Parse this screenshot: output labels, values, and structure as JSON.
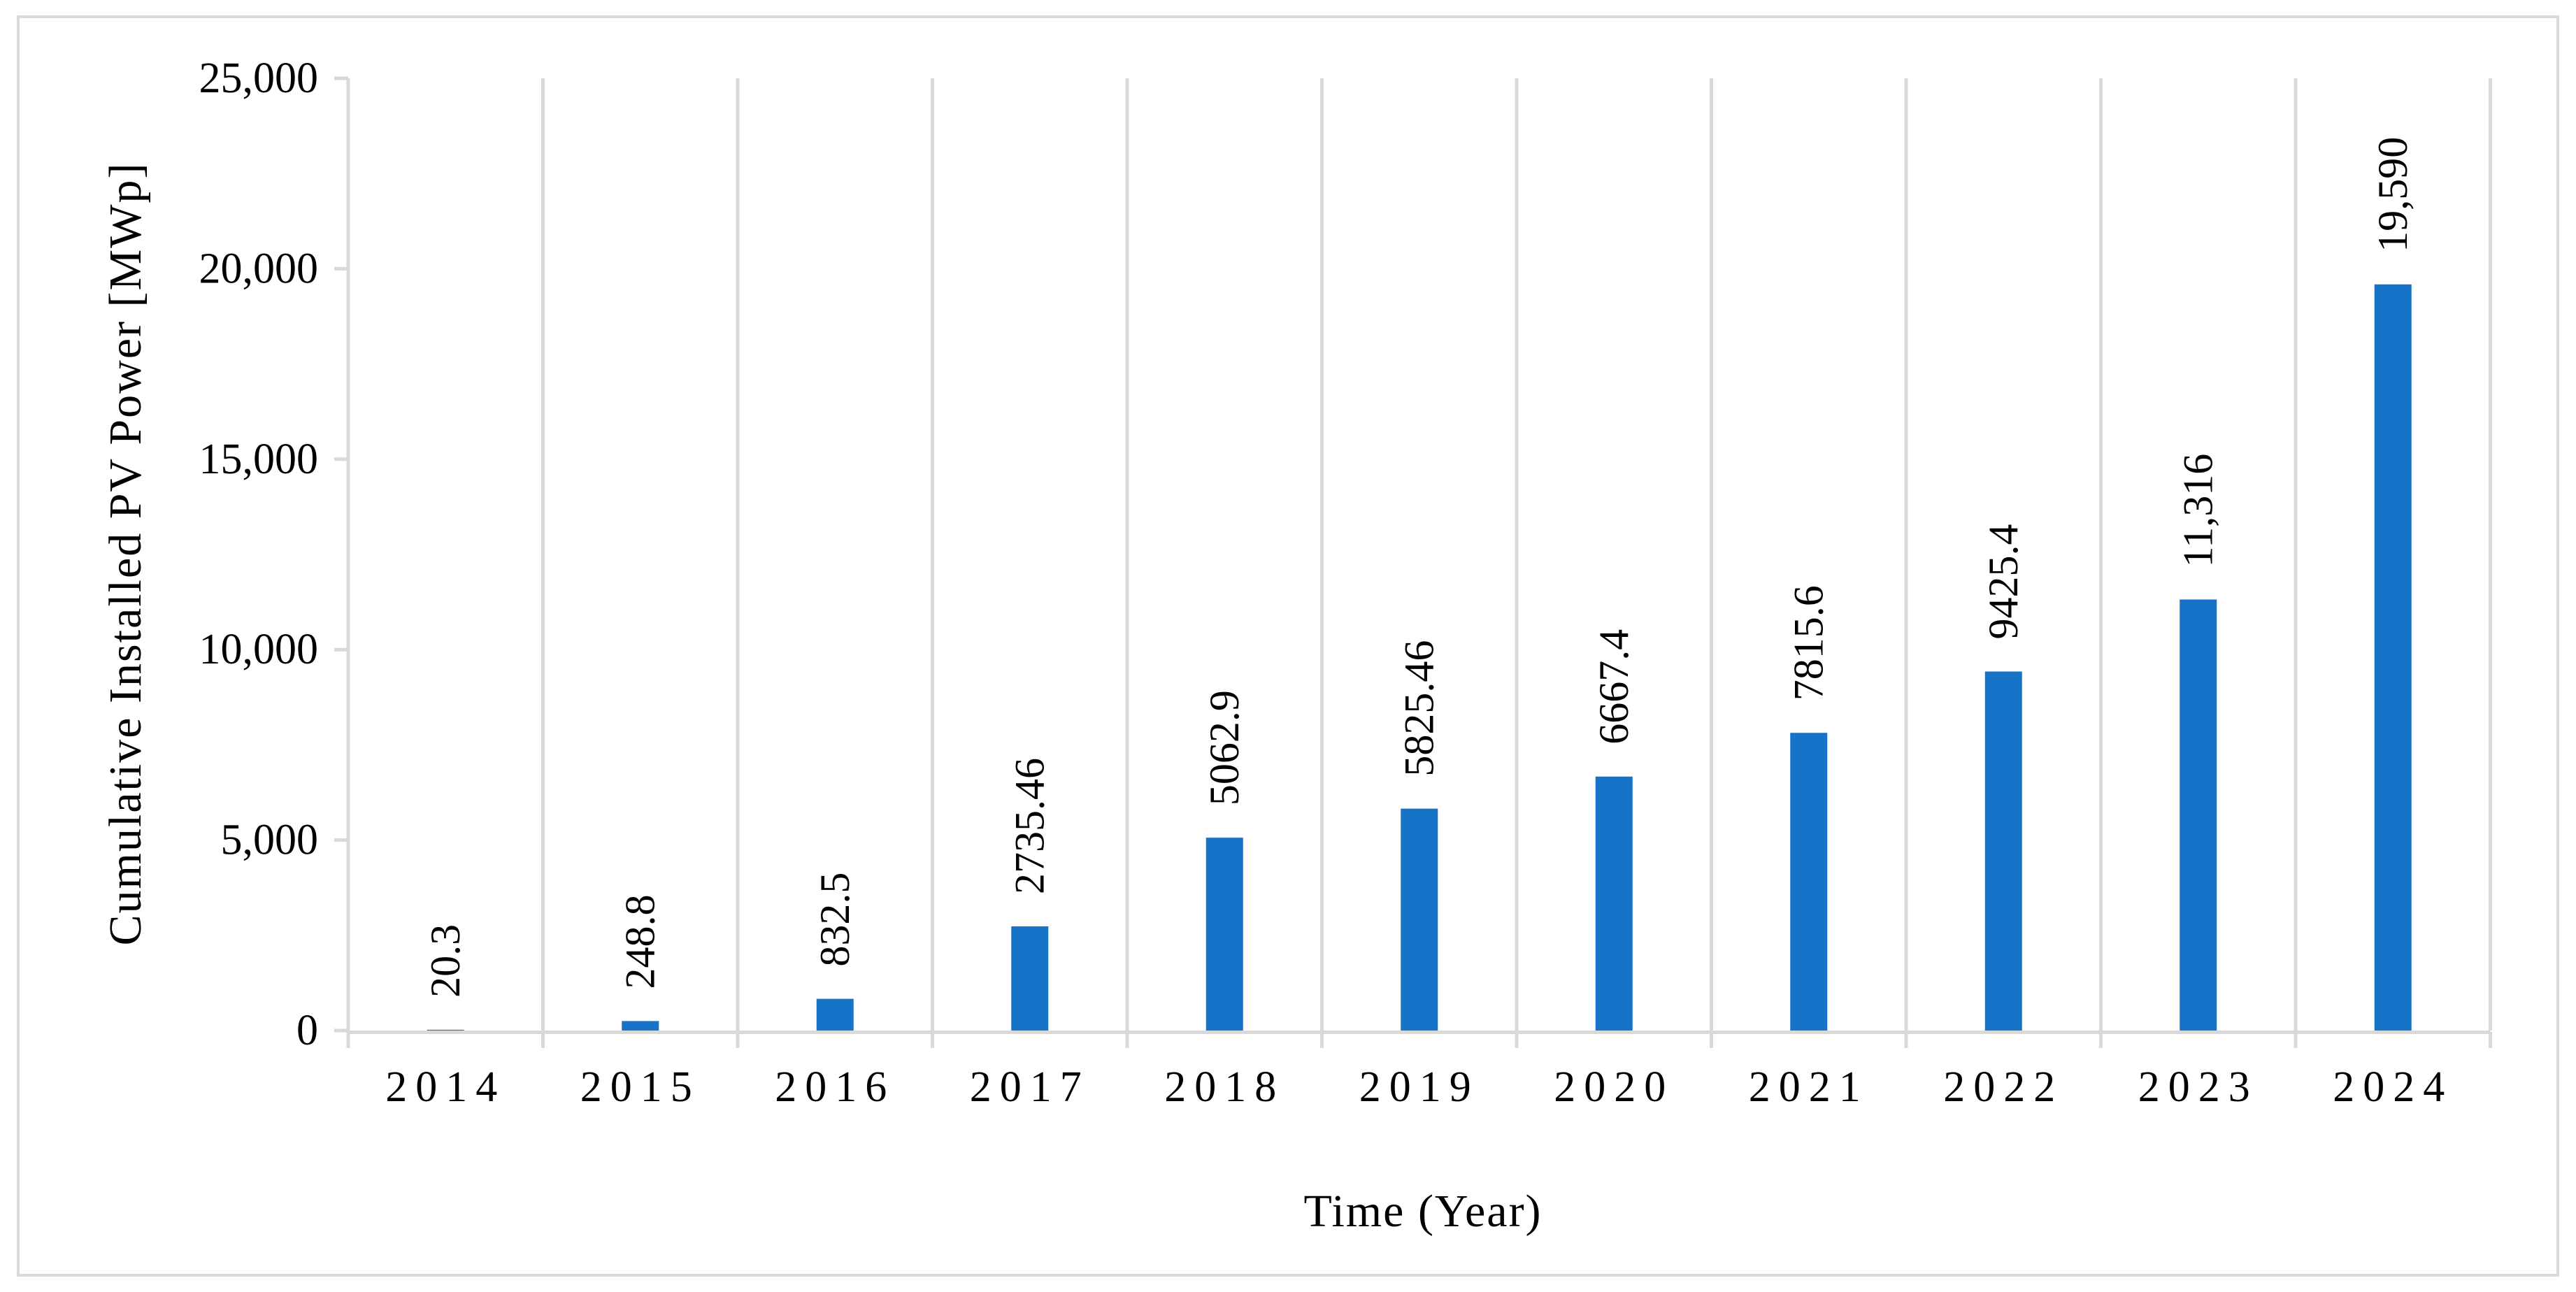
{
  "chart_data": {
    "type": "bar",
    "title": "",
    "xlabel": "Time (Year)",
    "ylabel": "Cumulative Installed PV Power [MWp]",
    "categories": [
      "2014",
      "2015",
      "2016",
      "2017",
      "2018",
      "2019",
      "2020",
      "2021",
      "2022",
      "2023",
      "2024"
    ],
    "values": [
      20.3,
      248.8,
      832.5,
      2735.46,
      5062.9,
      5825.46,
      6667.4,
      7815.6,
      9425.4,
      11316,
      19590
    ],
    "value_labels": [
      "20.3",
      "248.8",
      "832.5",
      "2735.46",
      "5062.9",
      "5825.46",
      "6667.4",
      "7815.6",
      "9425.4",
      "11,316",
      "19,590"
    ],
    "y_ticks": [
      "0",
      "5,000",
      "10,000",
      "15,000",
      "20,000",
      "25,000"
    ],
    "y_tick_values": [
      0,
      5000,
      10000,
      15000,
      20000,
      25000
    ],
    "ylim": [
      0,
      25000
    ],
    "grid": "vertical-only",
    "legend_position": "none",
    "bar_color": "#1773c8",
    "grid_color": "#d9d9d9",
    "text_color": "#000000"
  }
}
